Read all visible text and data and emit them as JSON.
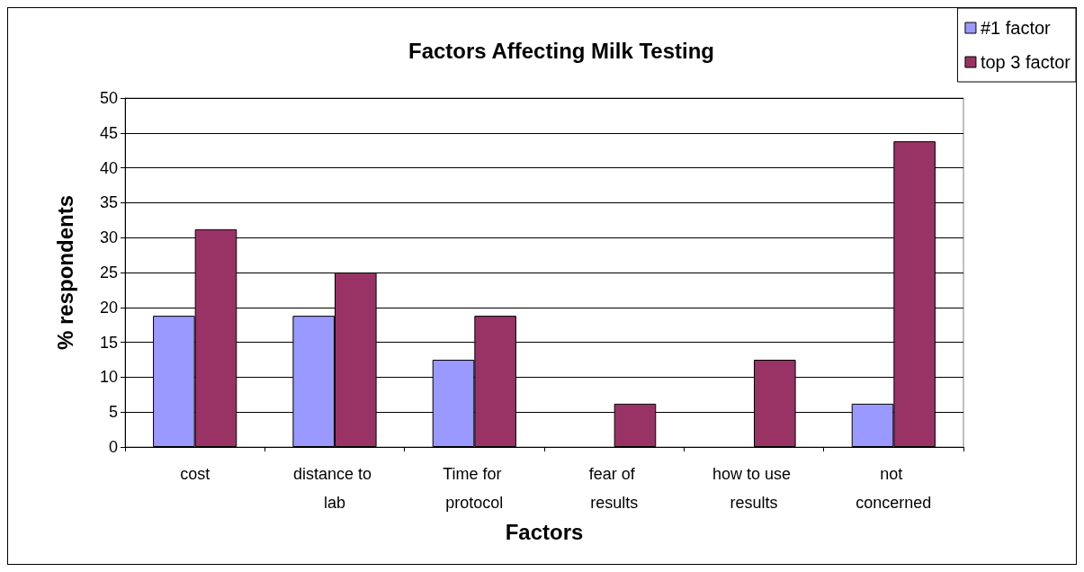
{
  "chart_data": {
    "type": "bar",
    "title": "Factors Affecting Milk Testing",
    "xlabel": "Factors",
    "ylabel": "% respondents",
    "categories": [
      "cost",
      "distance to lab",
      "Time for protocol",
      "fear of results",
      "how to use results",
      "not concerned"
    ],
    "series": [
      {
        "name": "#1 factor",
        "color": "#9999ff",
        "values": [
          18.8,
          18.8,
          12.5,
          0,
          0,
          6.2
        ]
      },
      {
        "name": "top 3 factor",
        "color": "#993366",
        "values": [
          31.2,
          25,
          18.8,
          6.2,
          12.5,
          43.8
        ]
      }
    ],
    "ylim": [
      0,
      50
    ],
    "yticks": [
      0,
      5,
      10,
      15,
      20,
      25,
      30,
      35,
      40,
      45,
      50
    ],
    "grid": "y",
    "legend": "top right"
  }
}
